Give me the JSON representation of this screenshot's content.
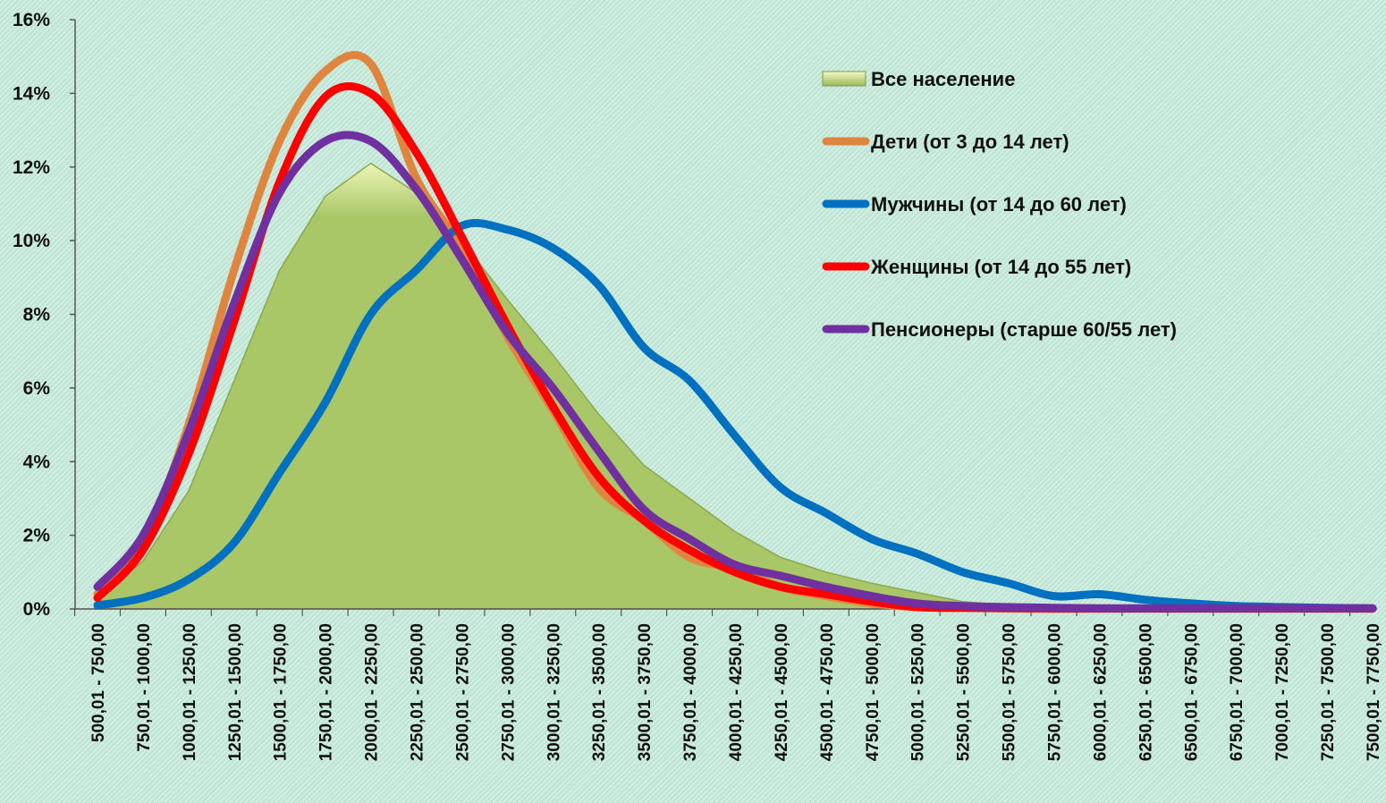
{
  "chart_data": {
    "type": "line",
    "title": "",
    "xlabel": "",
    "ylabel": "",
    "ylim": [
      0,
      16
    ],
    "y_ticks": [
      0,
      2,
      4,
      6,
      8,
      10,
      12,
      14,
      16
    ],
    "y_tick_labels": [
      "0%",
      "2%",
      "4%",
      "6%",
      "8%",
      "10%",
      "12%",
      "14%",
      "16%"
    ],
    "grid": false,
    "legend_position": "top-right",
    "categories": [
      "500,01 - 750,00",
      "750,01 - 1000,00",
      "1000,01 - 1250,00",
      "1250,01 - 1500,00",
      "1500,01 - 1750,00",
      "1750,01 - 2000,00",
      "2000,01 - 2250,00",
      "2250,01 - 2500,00",
      "2500,01 - 2750,00",
      "2750,01 - 3000,00",
      "3000,01 - 3250,00",
      "3250,01 - 3500,00",
      "3500,01 - 3750,00",
      "3750,01 - 4000,00",
      "4000,01 - 4250,00",
      "4250,01 - 4500,00",
      "4500,01 - 4750,00",
      "4750,01 - 5000,00",
      "5000,01 - 5250,00",
      "5250,01 - 5500,00",
      "5500,01 - 5750,00",
      "5750,01 - 6000,00",
      "6000,01 - 6250,00",
      "6250,01 - 6500,00",
      "6500,01 - 6750,00",
      "6750,01 - 7000,00",
      "7000,01 - 7250,00",
      "7250,01 - 7500,00",
      "7500,01 - 7750,00"
    ],
    "series": [
      {
        "name": "Все население",
        "chart_type": "area",
        "color": "#9bbb59",
        "values": [
          0.3,
          1.3,
          3.2,
          6.2,
          9.2,
          11.2,
          12.1,
          11.3,
          10.0,
          8.4,
          6.9,
          5.3,
          3.9,
          3.0,
          2.1,
          1.4,
          1.0,
          0.7,
          0.45,
          0.2,
          0.1,
          0.07,
          0.05,
          0.04,
          0.03,
          0.02,
          0.02,
          0.01,
          0.01
        ]
      },
      {
        "name": "Дети (от 3 до 14 лет)",
        "chart_type": "line",
        "color": "#e0853e",
        "values": [
          0.4,
          1.8,
          5.0,
          9.2,
          12.7,
          14.6,
          14.8,
          11.7,
          9.8,
          7.4,
          5.4,
          3.3,
          2.4,
          1.4,
          1.1,
          0.6,
          0.35,
          0.15,
          0.05,
          0.03,
          0.02,
          0.01,
          0.01,
          0.01,
          0.01,
          0.01,
          0.01,
          0.01,
          0.01
        ]
      },
      {
        "name": "Мужчины (от 14 до 60 лет)",
        "chart_type": "line",
        "color": "#0070c0",
        "values": [
          0.1,
          0.3,
          0.8,
          1.8,
          3.7,
          5.6,
          8.0,
          9.2,
          10.4,
          10.3,
          9.8,
          8.8,
          7.1,
          6.2,
          4.7,
          3.3,
          2.6,
          1.9,
          1.5,
          1.0,
          0.7,
          0.35,
          0.4,
          0.25,
          0.15,
          0.08,
          0.05,
          0.03,
          0.02
        ]
      },
      {
        "name": "Женщины (от 14 до 55 лет)",
        "chart_type": "line",
        "color": "#ff0000",
        "values": [
          0.3,
          1.6,
          4.2,
          7.8,
          11.6,
          13.9,
          14.0,
          12.4,
          10.1,
          7.7,
          5.5,
          3.6,
          2.4,
          1.6,
          1.0,
          0.6,
          0.4,
          0.2,
          0.05,
          0.03,
          0.02,
          0.01,
          0.01,
          0.01,
          0.01,
          0.01,
          0.01,
          0.01,
          0.01
        ]
      },
      {
        "name": "Пенсионеры (старше 60/55 лет)",
        "chart_type": "line",
        "color": "#7030a0",
        "values": [
          0.6,
          2.0,
          4.8,
          8.3,
          11.3,
          12.7,
          12.7,
          11.4,
          9.5,
          7.5,
          6.0,
          4.3,
          2.7,
          1.9,
          1.2,
          0.9,
          0.6,
          0.35,
          0.15,
          0.08,
          0.05,
          0.03,
          0.02,
          0.02,
          0.02,
          0.02,
          0.02,
          0.02,
          0.02
        ]
      }
    ]
  }
}
